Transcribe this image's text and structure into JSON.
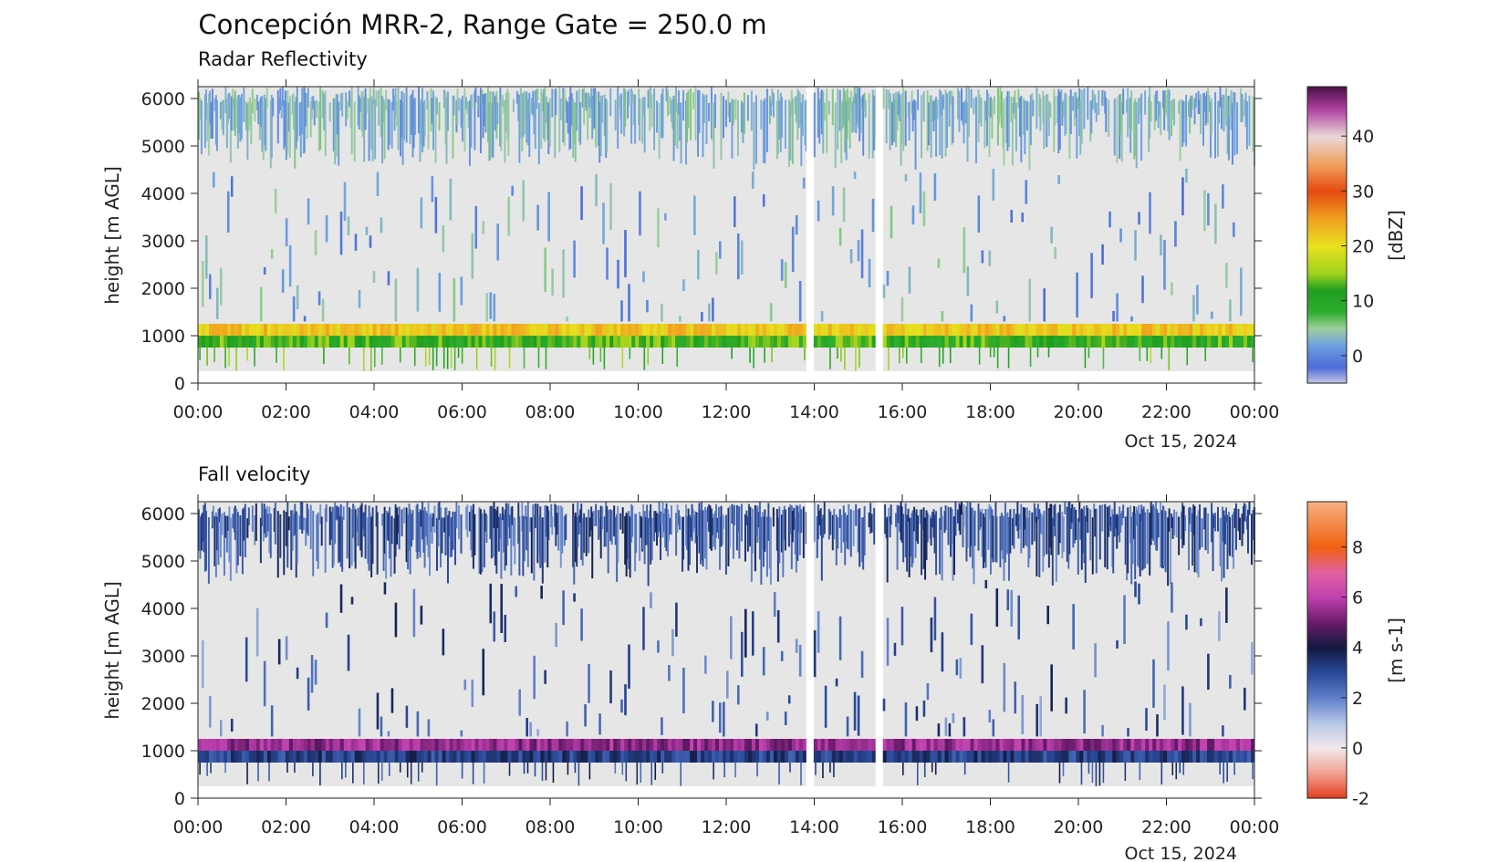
{
  "figure": {
    "title": "Concepción MRR-2, Range Gate = 250.0 m"
  },
  "chart_data": [
    {
      "type": "heatmap",
      "title": "Radar Reflectivity",
      "ylabel": "height [m AGL]",
      "x_ticks": [
        "00:00",
        "02:00",
        "04:00",
        "06:00",
        "08:00",
        "10:00",
        "12:00",
        "14:00",
        "16:00",
        "18:00",
        "20:00",
        "22:00",
        "00:00"
      ],
      "x_date": "Oct 15, 2024",
      "xlim_hours": [
        0,
        24
      ],
      "y_ticks": [
        0,
        1000,
        2000,
        3000,
        4000,
        5000,
        6000
      ],
      "ylim": [
        0,
        6250
      ],
      "data_range_m": [
        250,
        6250
      ],
      "gaps_hours": [
        [
          13.8,
          13.95
        ],
        [
          15.35,
          15.55
        ]
      ],
      "layers": [
        {
          "name": "bright band",
          "bottom_m": 1000,
          "top_m": 1250,
          "value": 22
        },
        {
          "name": "rain below band",
          "bottom_m": 750,
          "top_m": 1000,
          "value": 12
        },
        {
          "name": "upper cloud",
          "bottom_m": 4750,
          "top_m": 6250,
          "value": 3
        }
      ],
      "colorbar": {
        "label": "[dBZ]",
        "ticks": [
          0,
          10,
          20,
          30,
          40
        ],
        "vmin": -5,
        "vmax": 49,
        "colormap": [
          [
            -5,
            "#c9c9e6"
          ],
          [
            -2,
            "#4d6bd6"
          ],
          [
            2,
            "#6fa1e0"
          ],
          [
            5,
            "#9fcf9f"
          ],
          [
            8,
            "#2fae2f"
          ],
          [
            12,
            "#1f9e1f"
          ],
          [
            15,
            "#9fd21f"
          ],
          [
            20,
            "#e8e020"
          ],
          [
            25,
            "#f0a020"
          ],
          [
            30,
            "#e64a10"
          ],
          [
            35,
            "#f0a060"
          ],
          [
            40,
            "#e8d8d8"
          ],
          [
            45,
            "#b040a0"
          ],
          [
            49,
            "#4a1048"
          ]
        ]
      }
    },
    {
      "type": "heatmap",
      "title": "Fall velocity",
      "ylabel": "height [m AGL]",
      "x_ticks": [
        "00:00",
        "02:00",
        "04:00",
        "06:00",
        "08:00",
        "10:00",
        "12:00",
        "14:00",
        "16:00",
        "18:00",
        "20:00",
        "22:00",
        "00:00"
      ],
      "x_date": "Oct 15, 2024",
      "xlim_hours": [
        0,
        24
      ],
      "y_ticks": [
        0,
        1000,
        2000,
        3000,
        4000,
        5000,
        6000
      ],
      "ylim": [
        0,
        6250
      ],
      "data_range_m": [
        250,
        6250
      ],
      "gaps_hours": [
        [
          13.8,
          13.95
        ],
        [
          15.35,
          15.55
        ]
      ],
      "layers": [
        {
          "name": "bright band",
          "bottom_m": 1000,
          "top_m": 1250,
          "value": 5.5
        },
        {
          "name": "rain below band",
          "bottom_m": 750,
          "top_m": 1000,
          "value": 3.2
        },
        {
          "name": "upper cloud",
          "bottom_m": 4750,
          "top_m": 6250,
          "value": 2.8
        }
      ],
      "colorbar": {
        "label": "[m s-1]",
        "ticks": [
          -2,
          0,
          2,
          4,
          6,
          8
        ],
        "vmin": -2,
        "vmax": 9.8,
        "colormap": [
          [
            -2,
            "#e23c1e"
          ],
          [
            -1,
            "#f2a090"
          ],
          [
            0,
            "#f2e8e8"
          ],
          [
            1,
            "#b8c8e8"
          ],
          [
            2,
            "#5f80c8"
          ],
          [
            3,
            "#2a4a9a"
          ],
          [
            4,
            "#111a40"
          ],
          [
            5,
            "#6a1a6a"
          ],
          [
            6,
            "#c040b0"
          ],
          [
            7,
            "#e060a0"
          ],
          [
            8,
            "#f06010"
          ],
          [
            9.8,
            "#f6b080"
          ]
        ]
      }
    }
  ]
}
